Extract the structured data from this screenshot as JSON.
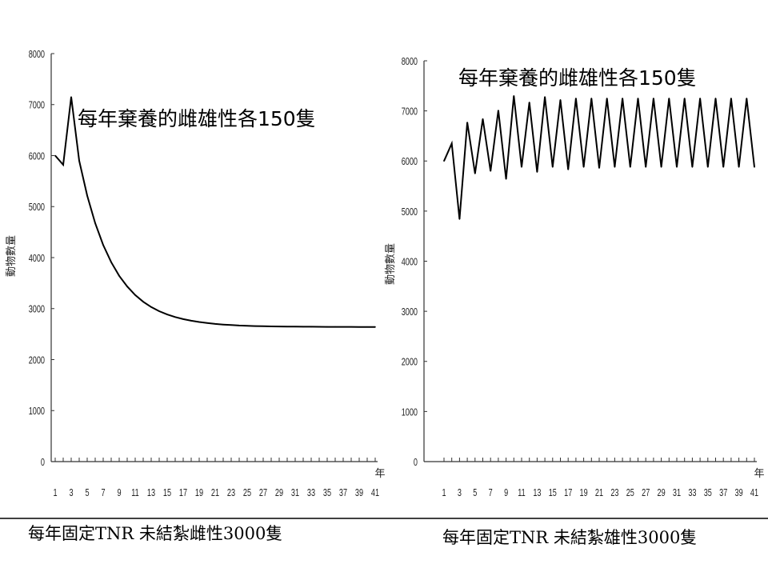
{
  "chart_data": [
    {
      "type": "line",
      "annotation": "每年棄養的雌雄性各150隻",
      "caption": "每年固定TNR 未結紮雌性3000隻",
      "ylabel": "動物數量",
      "xlabel": "年",
      "ylim": [
        0,
        8000
      ],
      "yticks": [
        "0",
        "1000",
        "2000",
        "3000",
        "4000",
        "5000",
        "6000",
        "7000",
        "8000"
      ],
      "x": [
        1,
        2,
        3,
        4,
        5,
        6,
        7,
        8,
        9,
        10,
        11,
        12,
        13,
        14,
        15,
        16,
        17,
        18,
        19,
        20,
        21,
        22,
        23,
        24,
        25,
        26,
        27,
        28,
        29,
        30,
        31,
        32,
        33,
        34,
        35,
        36,
        37,
        38,
        39,
        40,
        41
      ],
      "xticklabels": [
        "1",
        "3",
        "5",
        "7",
        "9",
        "11",
        "13",
        "15",
        "17",
        "19",
        "21",
        "23",
        "25",
        "27",
        "29",
        "31",
        "33",
        "35",
        "37",
        "39",
        "41"
      ],
      "values": [
        6000,
        5820,
        7150,
        5900,
        5215,
        4674,
        4247,
        3910,
        3643,
        3433,
        3266,
        3134,
        3031,
        2949,
        2885,
        2834,
        2793,
        2762,
        2737,
        2717,
        2700,
        2687,
        2677,
        2669,
        2663,
        2658,
        2654,
        2651,
        2649,
        2647,
        2646,
        2645,
        2644,
        2643,
        2642,
        2642,
        2641,
        2641,
        2640,
        2640,
        2640
      ]
    },
    {
      "type": "line",
      "annotation": "每年棄養的雌雄性各150隻",
      "caption": "每年固定TNR 未結紮雄性3000隻",
      "ylabel": "動物數量",
      "xlabel": "年",
      "ylim": [
        0,
        8000
      ],
      "yticks": [
        "0",
        "1000",
        "2000",
        "3000",
        "4000",
        "5000",
        "6000",
        "7000",
        "8000"
      ],
      "x": [
        1,
        2,
        3,
        4,
        5,
        6,
        7,
        8,
        9,
        10,
        11,
        12,
        13,
        14,
        15,
        16,
        17,
        18,
        19,
        20,
        21,
        22,
        23,
        24,
        25,
        26,
        27,
        28,
        29,
        30,
        31,
        32,
        33,
        34,
        35,
        36,
        37,
        38,
        39,
        40,
        41
      ],
      "xticklabels": [
        "1",
        "3",
        "5",
        "7",
        "9",
        "11",
        "13",
        "15",
        "17",
        "19",
        "21",
        "23",
        "25",
        "27",
        "29",
        "31",
        "33",
        "35",
        "37",
        "39",
        "41"
      ],
      "values": [
        6000,
        6350,
        4840,
        6770,
        5750,
        6840,
        5800,
        7010,
        5640,
        7300,
        5880,
        7170,
        5780,
        7280,
        5880,
        7220,
        5830,
        7250,
        5880,
        7250,
        5860,
        7250,
        5880,
        7250,
        5880,
        7250,
        5880,
        7250,
        5880,
        7250,
        5880,
        7250,
        5880,
        7250,
        5880,
        7250,
        5880,
        7250,
        5880,
        7250,
        5880
      ]
    }
  ]
}
